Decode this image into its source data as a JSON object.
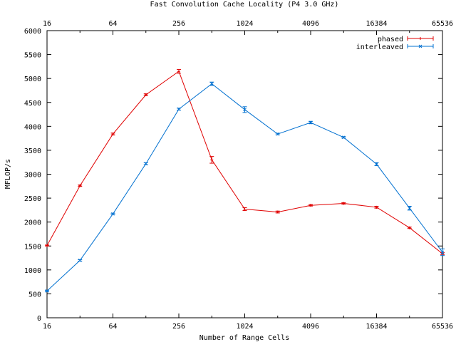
{
  "chart_data": {
    "type": "line",
    "title": "Fast Convolution Cache Locality (P4 3.0 GHz)",
    "xlabel": "Number of Range Cells",
    "ylabel": "MFLOP/s",
    "x_scale": "log2",
    "xlim": [
      16,
      65536
    ],
    "ylim": [
      0,
      6000
    ],
    "x_ticks": [
      16,
      64,
      256,
      1024,
      4096,
      16384,
      65536
    ],
    "x_tick_labels": [
      "16",
      "64",
      "256",
      "1024",
      "4096",
      "16384",
      "65536"
    ],
    "y_ticks": [
      0,
      500,
      1000,
      1500,
      2000,
      2500,
      3000,
      3500,
      4000,
      4500,
      5000,
      5500,
      6000
    ],
    "y_tick_labels": [
      "0",
      "500",
      "1000",
      "1500",
      "2000",
      "2500",
      "3000",
      "3500",
      "4000",
      "4500",
      "5000",
      "5500",
      "6000"
    ],
    "grid": false,
    "error_bars": true,
    "legend_position": "top-right",
    "x": [
      16,
      32,
      64,
      128,
      256,
      512,
      1024,
      2048,
      4096,
      8192,
      16384,
      32768,
      65536
    ],
    "series": [
      {
        "name": "phased",
        "color": "#e00000",
        "values": [
          1510,
          2760,
          3840,
          4660,
          5150,
          3300,
          2270,
          2210,
          2350,
          2390,
          2310,
          1880,
          1340
        ],
        "errors": [
          10,
          15,
          20,
          20,
          40,
          70,
          30,
          20,
          15,
          15,
          20,
          15,
          20
        ]
      },
      {
        "name": "interleaved",
        "color": "#0070d0",
        "values": [
          560,
          1200,
          2170,
          3220,
          4360,
          4890,
          4350,
          3840,
          4080,
          3770,
          3210,
          2290,
          1370
        ],
        "errors": [
          15,
          15,
          15,
          20,
          20,
          35,
          60,
          15,
          25,
          15,
          30,
          40,
          70
        ]
      }
    ]
  }
}
